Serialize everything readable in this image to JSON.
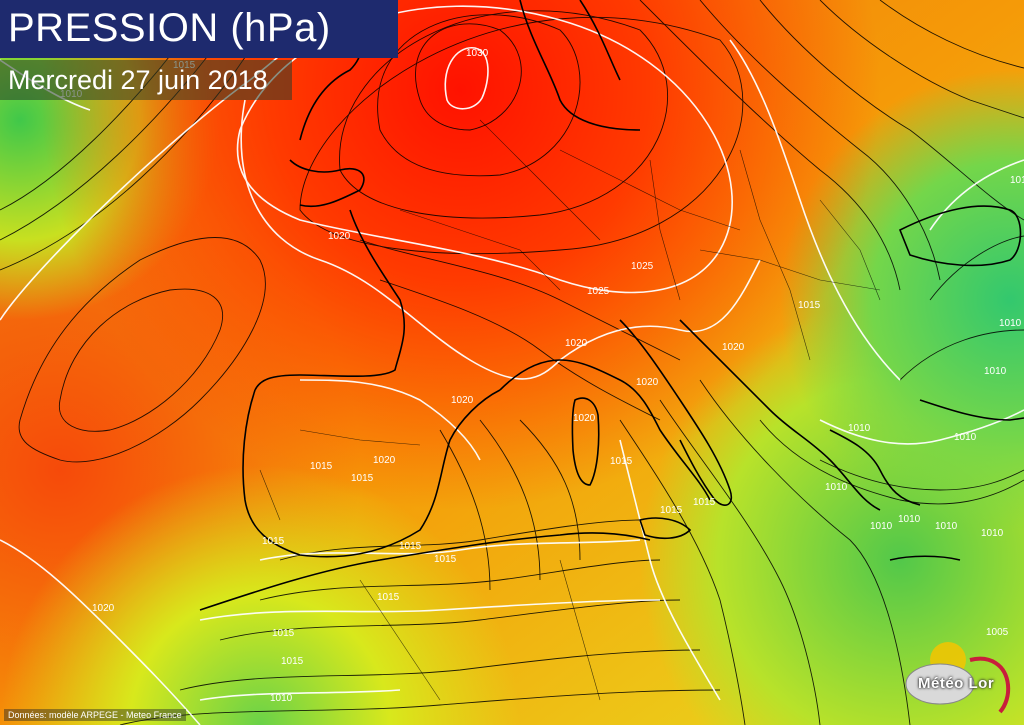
{
  "header": {
    "title": "PRESSION (hPa)",
    "date": "Mercredi 27 juin 2018"
  },
  "footer": {
    "source": "Données: modèle ARPEGE - Meteo France",
    "logo_text": "Météo Lor"
  },
  "colors": {
    "high_pressure": "#ff1a00",
    "mid_pressure": "#f5a100",
    "low_pressure": "#33c85a",
    "title_bg": "#1e2a6e",
    "isobar_highlight": "#ffffff",
    "coastline": "#000000"
  },
  "isobar_labels": [
    {
      "text": "1030"
    },
    {
      "text": "1015"
    },
    {
      "text": "1010"
    },
    {
      "text": "1020"
    },
    {
      "text": "1025"
    },
    {
      "text": "1025"
    },
    {
      "text": "1020"
    },
    {
      "text": "1020"
    },
    {
      "text": "1020"
    },
    {
      "text": "1020"
    },
    {
      "text": "1015"
    },
    {
      "text": "1020"
    },
    {
      "text": "1015"
    },
    {
      "text": "1015"
    },
    {
      "text": "1015"
    },
    {
      "text": "1015"
    },
    {
      "text": "1015"
    },
    {
      "text": "1015"
    },
    {
      "text": "1015"
    },
    {
      "text": "1015"
    },
    {
      "text": "1020"
    },
    {
      "text": "1015"
    },
    {
      "text": "1015"
    },
    {
      "text": "1010"
    },
    {
      "text": "1015"
    },
    {
      "text": "1020"
    },
    {
      "text": "1010"
    },
    {
      "text": "1010"
    },
    {
      "text": "1010"
    },
    {
      "text": "1010"
    },
    {
      "text": "1010"
    },
    {
      "text": "1010"
    },
    {
      "text": "1010"
    },
    {
      "text": "1010"
    },
    {
      "text": "1010"
    },
    {
      "text": "1005"
    },
    {
      "text": "1010"
    }
  ]
}
